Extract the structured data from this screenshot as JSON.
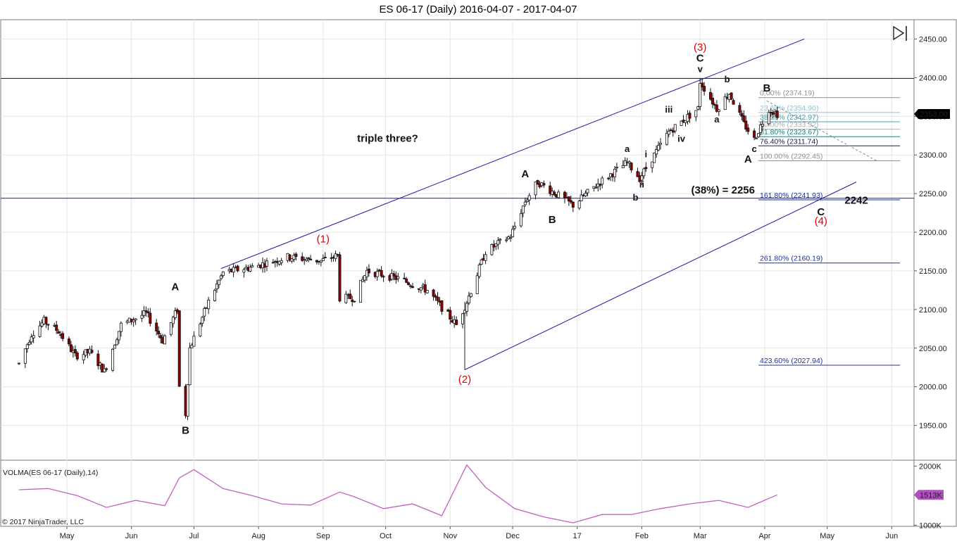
{
  "window": {
    "title": "ES 06-17 (Daily)  2016-04-07 - 2017-04-07"
  },
  "chart_data": [
    {
      "type": "candlestick",
      "instrument": "ES 06-17",
      "interval": "Daily",
      "x_range": [
        "2016-04-07",
        "2017-04-07"
      ],
      "ylim": [
        1905,
        2475
      ],
      "y_ticks": [
        1950,
        2000,
        2050,
        2100,
        2150,
        2200,
        2250,
        2300,
        2350,
        2400,
        2450
      ],
      "x_ticks": [
        "May",
        "Jun",
        "Jul",
        "Aug",
        "Sep",
        "Oct",
        "Nov",
        "Dec",
        "17",
        "Feb",
        "Mar",
        "Apr",
        "May",
        "Jun"
      ],
      "x_tick_dates": [
        "2016-05-01",
        "2016-06-01",
        "2016-07-01",
        "2016-08-01",
        "2016-09-01",
        "2016-10-01",
        "2016-11-01",
        "2016-12-01",
        "2017-01-01",
        "2017-02-01",
        "2017-03-01",
        "2017-04-01",
        "2017-05-01",
        "2017-06-01"
      ],
      "last_price": 2353.0,
      "last_price_label": "2353.00",
      "up_color": "#ffffff",
      "down_color": "#8b0000",
      "price_path": [
        [
          "2016-04-08",
          2030
        ],
        [
          "2016-04-14",
          2068
        ],
        [
          "2016-04-20",
          2085
        ],
        [
          "2016-04-27",
          2072
        ],
        [
          "2016-05-05",
          2040
        ],
        [
          "2016-05-12",
          2045
        ],
        [
          "2016-05-19",
          2020
        ],
        [
          "2016-05-27",
          2080
        ],
        [
          "2016-06-08",
          2095
        ],
        [
          "2016-06-16",
          2060
        ],
        [
          "2016-06-23",
          2100
        ],
        [
          "2016-06-24",
          2000
        ],
        [
          "2016-06-27",
          1965
        ],
        [
          "2016-06-29",
          2050
        ],
        [
          "2016-07-08",
          2110
        ],
        [
          "2016-07-15",
          2148
        ],
        [
          "2016-07-29",
          2155
        ],
        [
          "2016-08-15",
          2168
        ],
        [
          "2016-08-31",
          2163
        ],
        [
          "2016-09-08",
          2170
        ],
        [
          "2016-09-09",
          2115
        ],
        [
          "2016-09-16",
          2115
        ],
        [
          "2016-09-22",
          2150
        ],
        [
          "2016-10-07",
          2140
        ],
        [
          "2016-10-21",
          2125
        ],
        [
          "2016-11-04",
          2080
        ],
        [
          "2016-11-09",
          2110
        ],
        [
          "2016-11-18",
          2175
        ],
        [
          "2016-11-30",
          2195
        ],
        [
          "2016-12-07",
          2240
        ],
        [
          "2016-12-13",
          2265
        ],
        [
          "2016-12-30",
          2235
        ],
        [
          "2017-01-12",
          2265
        ],
        [
          "2017-01-25",
          2290
        ],
        [
          "2017-01-31",
          2270
        ],
        [
          "2017-02-14",
          2330
        ],
        [
          "2017-02-28",
          2360
        ],
        [
          "2017-03-01",
          2395
        ],
        [
          "2017-03-09",
          2360
        ],
        [
          "2017-03-15",
          2380
        ],
        [
          "2017-03-22",
          2340
        ],
        [
          "2017-03-27",
          2320
        ],
        [
          "2017-04-03",
          2360
        ],
        [
          "2017-04-07",
          2353
        ]
      ]
    },
    {
      "type": "line",
      "title": "VOLMA(ES 06-17 (Daily),14)",
      "ylim": [
        980000,
        2100000
      ],
      "y_ticks": [
        1000000,
        2000000
      ],
      "y_tick_labels": [
        "1000K",
        "2000K"
      ],
      "last_value_label": "1513K",
      "color": "#c060c0",
      "x": [
        "2016-04-08",
        "2016-04-22",
        "2016-05-06",
        "2016-05-20",
        "2016-06-03",
        "2016-06-17",
        "2016-06-24",
        "2016-07-01",
        "2016-07-15",
        "2016-07-29",
        "2016-08-12",
        "2016-08-26",
        "2016-09-09",
        "2016-09-16",
        "2016-09-30",
        "2016-10-14",
        "2016-10-28",
        "2016-11-09",
        "2016-11-18",
        "2016-12-02",
        "2016-12-16",
        "2016-12-30",
        "2017-01-13",
        "2017-01-27",
        "2017-02-10",
        "2017-02-24",
        "2017-03-10",
        "2017-03-24",
        "2017-04-07"
      ],
      "values": [
        1600000,
        1620000,
        1500000,
        1300000,
        1420000,
        1330000,
        1800000,
        1940000,
        1620000,
        1500000,
        1360000,
        1340000,
        1560000,
        1480000,
        1280000,
        1360000,
        1160000,
        2020000,
        1640000,
        1280000,
        1140000,
        1040000,
        1180000,
        1180000,
        1280000,
        1360000,
        1420000,
        1300000,
        1513000
      ]
    }
  ],
  "annotations": {
    "waves_red": [
      {
        "text": "(3)",
        "d": "2017-03-01",
        "p": 2435
      },
      {
        "text": "(1)",
        "d": "2016-09-01",
        "p": 2187
      },
      {
        "text": "(2)",
        "d": "2016-11-08",
        "p": 2005
      },
      {
        "text": "(4)",
        "d": "2017-04-28",
        "p": 2210
      }
    ],
    "waves_black": [
      {
        "text": "C",
        "d": "2017-03-01",
        "p": 2421
      },
      {
        "text": "B",
        "d": "2017-04-02",
        "p": 2382
      },
      {
        "text": "A",
        "d": "2017-03-24",
        "p": 2290
      },
      {
        "text": "A",
        "d": "2016-12-07",
        "p": 2271
      },
      {
        "text": "B",
        "d": "2016-12-20",
        "p": 2212
      },
      {
        "text": "A",
        "d": "2016-06-22",
        "p": 2125
      },
      {
        "text": "B",
        "d": "2016-06-27",
        "p": 1939
      },
      {
        "text": "C",
        "d": "2017-04-28",
        "p": 2222
      },
      {
        "text": "2242",
        "d": "2017-05-15",
        "p": 2237
      }
    ],
    "waves_small": [
      {
        "text": "v",
        "d": "2017-03-01",
        "p": 2407
      },
      {
        "text": "b",
        "d": "2017-03-14",
        "p": 2394
      },
      {
        "text": "a",
        "d": "2017-03-09",
        "p": 2342
      },
      {
        "text": "c",
        "d": "2017-03-27",
        "p": 2304
      },
      {
        "text": "iii",
        "d": "2017-02-14",
        "p": 2355
      },
      {
        "text": "iv",
        "d": "2017-02-20",
        "p": 2317
      },
      {
        "text": "a",
        "d": "2017-01-25",
        "p": 2304
      },
      {
        "text": "i",
        "d": "2017-02-03",
        "p": 2297
      },
      {
        "text": "ii",
        "d": "2017-02-01",
        "p": 2258
      },
      {
        "text": "b",
        "d": "2017-01-29",
        "p": 2241
      }
    ],
    "notes": [
      {
        "text": "triple three?",
        "d": "2016-10-02",
        "p": 2317
      },
      {
        "text": "(38%) = 2256",
        "d": "2017-03-12",
        "p": 2250
      }
    ],
    "fib_levels": [
      {
        "label": "0.00% (2374.19)",
        "p": 2374.19,
        "color": "#909090"
      },
      {
        "label": "23.60% (2354.90)",
        "p": 2354.9,
        "color": "#90c0d0"
      },
      {
        "label": "38.20% (2342.97)",
        "p": 2342.97,
        "color": "#40a0b0"
      },
      {
        "label": "50.00% (2333.32)",
        "p": 2333.32,
        "color": "#b0b0b0"
      },
      {
        "label": "61.80% (2323.67)",
        "p": 2323.67,
        "color": "#208080"
      },
      {
        "label": "76.40% (2311.74)",
        "p": 2311.74,
        "color": "#202040"
      },
      {
        "label": "100.00% (2292.45)",
        "p": 2292.45,
        "color": "#909090"
      },
      {
        "label": "161.80% (2241.93)",
        "p": 2241.93,
        "color": "#2030a0"
      },
      {
        "label": "261.80% (2160.19)",
        "p": 2160.19,
        "color": "#2030a0"
      },
      {
        "label": "423.60% (2027.94)",
        "p": 2027.94,
        "color": "#2030a0"
      }
    ],
    "horizontal_lines": [
      2399,
      2244
    ],
    "channel": {
      "upper": [
        [
          "2016-07-14",
          2153
        ],
        [
          "2017-04-20",
          2450
        ]
      ],
      "lower": [
        [
          "2016-11-08",
          2022
        ],
        [
          "2017-05-15",
          2265
        ]
      ]
    },
    "wave2_spike": [
      [
        "2016-11-08",
        2022
      ],
      [
        "2016-11-08",
        2110
      ]
    ],
    "projection": [
      [
        "2017-04-02",
        2370
      ],
      [
        "2017-05-25",
        2292
      ]
    ]
  },
  "footer": {
    "copyright": "© 2017 NinjaTrader, LLC"
  },
  "icons": {
    "nav_end": "skip-to-end-icon"
  },
  "colors": {
    "accent": "#1a1aa0",
    "wave_label": "#e00000",
    "volume_line": "#c060c0"
  }
}
